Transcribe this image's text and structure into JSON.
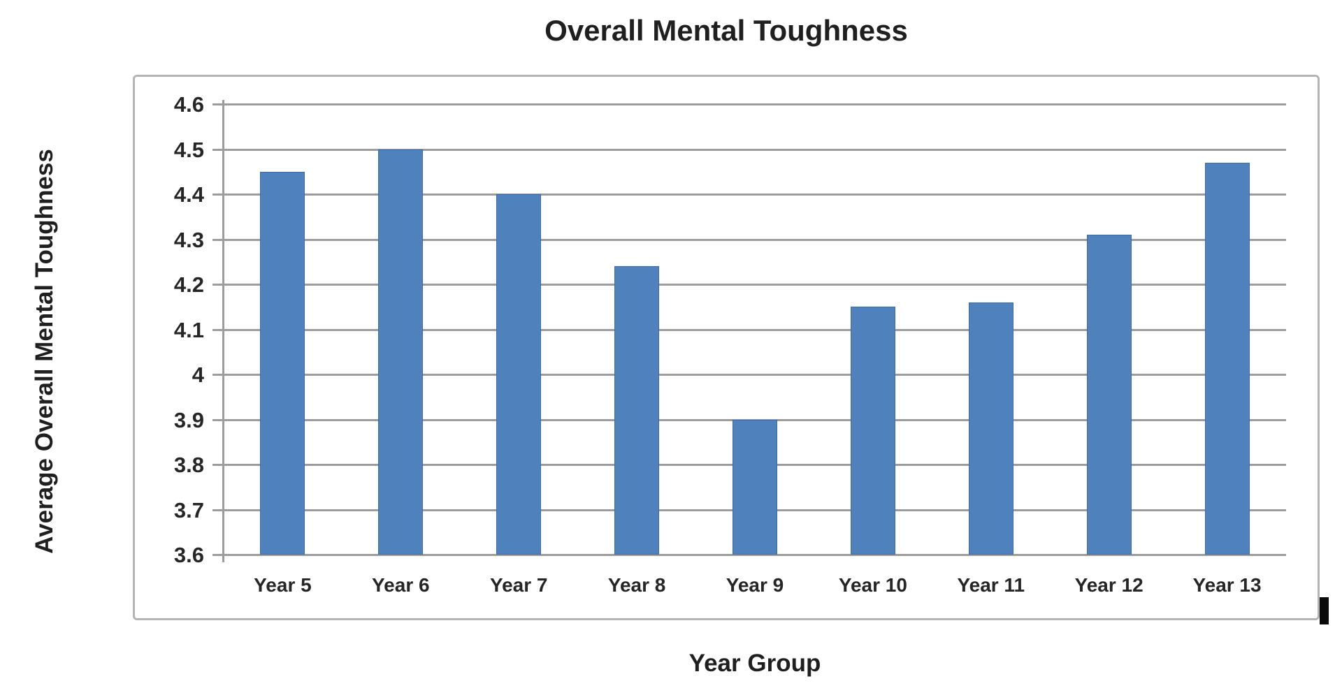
{
  "chart_data": {
    "type": "bar",
    "title": "Overall Mental Toughness",
    "xlabel": "Year Group",
    "ylabel": "Average Overall Mental Toughness",
    "categories": [
      "Year 5",
      "Year 6",
      "Year 7",
      "Year 8",
      "Year 9",
      "Year 10",
      "Year 11",
      "Year 12",
      "Year 13"
    ],
    "values": [
      4.45,
      4.5,
      4.4,
      4.24,
      3.9,
      4.15,
      4.16,
      4.31,
      4.47
    ],
    "ylim": [
      3.6,
      4.6
    ],
    "ytick_step": 0.1,
    "ytick_labels": [
      "3.6",
      "3.7",
      "3.8",
      "3.9",
      "4",
      "4.1",
      "4.2",
      "4.3",
      "4.4",
      "4.5",
      "4.6"
    ],
    "grid": true,
    "legend": "none",
    "series_name": "Average Overall Mental Toughness",
    "bar_color": "#4f81bd",
    "bar_edge_color": "#3d6ca8",
    "grid_color": "#9c9c9c",
    "text_color": "#262626"
  }
}
